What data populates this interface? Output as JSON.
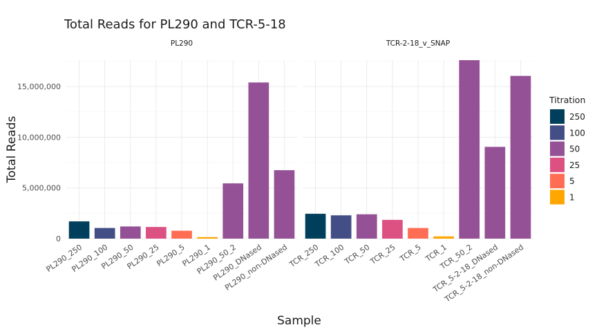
{
  "chart_data": {
    "type": "bar",
    "title": "Total Reads for PL290 and TCR-5-18",
    "xlabel": "Sample",
    "ylabel": "Total Reads",
    "ylim": [
      0,
      17600000
    ],
    "yticks": [
      0,
      5000000,
      10000000,
      15000000
    ],
    "ytick_labels": [
      "0",
      "5,000,000",
      "10,000,000",
      "15,000,000"
    ],
    "grid": true,
    "legend_position": "right",
    "legend": {
      "title": "Titration",
      "entries": [
        {
          "label": "250",
          "color": "#003f5c"
        },
        {
          "label": "100",
          "color": "#444e86"
        },
        {
          "label": "50",
          "color": "#955196"
        },
        {
          "label": "25",
          "color": "#dd5182"
        },
        {
          "label": "5",
          "color": "#ff6e54"
        },
        {
          "label": "1",
          "color": "#ffa600"
        }
      ]
    },
    "facets": [
      {
        "label": "PL290",
        "categories": [
          "PL290_250",
          "PL290_100",
          "PL290_50",
          "PL290_25",
          "PL290_5",
          "PL290_1",
          "PL290_50_2",
          "PL290_DNased",
          "PL290_non-DNased"
        ],
        "values": [
          1700000,
          1050000,
          1200000,
          1150000,
          780000,
          150000,
          5450000,
          15400000,
          6750000
        ],
        "titration": [
          "250",
          "100",
          "50",
          "25",
          "5",
          "1",
          "50",
          "50",
          "50"
        ]
      },
      {
        "label": "TCR-2-18_v_SNAP",
        "categories": [
          "TCR_250",
          "TCR_100",
          "TCR_50",
          "TCR_25",
          "TCR_5",
          "TCR_1",
          "TCR_50_2",
          "TCR_5-2-18_DNased",
          "TCR_5-2-18_non-DNased"
        ],
        "values": [
          2450000,
          2300000,
          2400000,
          1850000,
          1050000,
          220000,
          17600000,
          9050000,
          16050000
        ],
        "titration": [
          "250",
          "100",
          "50",
          "25",
          "5",
          "1",
          "50",
          "50",
          "50"
        ]
      }
    ]
  }
}
